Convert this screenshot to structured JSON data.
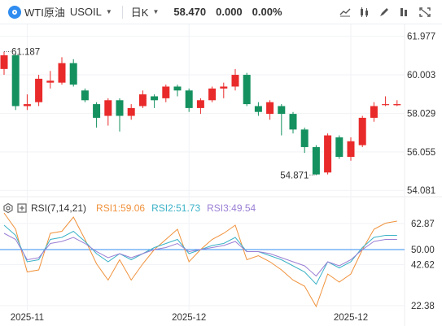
{
  "header": {
    "title": "WTI原油",
    "instrument": "USOIL",
    "period": "日K",
    "price": "58.470",
    "change": "0.000",
    "change_pct": "0.00%"
  },
  "toolbar": [
    "trend-line-icon",
    "indicator-icon",
    "draw-icon",
    "settings-icon",
    "fullscreen-icon"
  ],
  "colors": {
    "up": "#e92a2a",
    "down": "#14915f",
    "rsi1": "#f0923c",
    "rsi2": "#3bb2c7",
    "rsi3": "#9b7fd4",
    "rsi_mid": "#2f8cf0",
    "price_marker": "#e92a2a"
  },
  "rsi_legend": {
    "name": "RSI(7,14,21)",
    "rsi1": "RSI1:59.06",
    "rsi2": "RSI2:51.73",
    "rsi3": "RSI3:49.54"
  },
  "chart_data": {
    "type": "candlestick",
    "title": "",
    "price_axis": {
      "ticks": [
        61.977,
        60.003,
        58.029,
        56.055,
        54.081
      ],
      "range": [
        53.8,
        62.5
      ]
    },
    "max_label": "61.187",
    "min_label": "54.871",
    "last_price": 58.47,
    "date_labels": [
      {
        "label": "2025-11",
        "index": 2
      },
      {
        "label": "2025-12",
        "index": 16
      },
      {
        "label": "2025-12",
        "index": 30
      }
    ],
    "candles": [
      {
        "o": 60.3,
        "c": 61.0,
        "h": 61.187,
        "l": 60.0
      },
      {
        "o": 61.0,
        "c": 58.4,
        "h": 61.1,
        "l": 58.2
      },
      {
        "o": 58.4,
        "c": 58.5,
        "h": 59.0,
        "l": 58.2
      },
      {
        "o": 58.6,
        "c": 59.8,
        "h": 60.0,
        "l": 58.4
      },
      {
        "o": 59.6,
        "c": 59.7,
        "h": 60.2,
        "l": 59.3
      },
      {
        "o": 59.6,
        "c": 60.6,
        "h": 60.9,
        "l": 59.5
      },
      {
        "o": 60.6,
        "c": 59.5,
        "h": 60.8,
        "l": 59.4
      },
      {
        "o": 59.2,
        "c": 58.7,
        "h": 59.3,
        "l": 58.6
      },
      {
        "o": 58.5,
        "c": 57.8,
        "h": 58.6,
        "l": 57.3
      },
      {
        "o": 57.9,
        "c": 58.7,
        "h": 58.8,
        "l": 57.4
      },
      {
        "o": 58.7,
        "c": 57.9,
        "h": 58.8,
        "l": 57.1
      },
      {
        "o": 57.9,
        "c": 58.3,
        "h": 58.5,
        "l": 57.7
      },
      {
        "o": 58.4,
        "c": 59.0,
        "h": 59.2,
        "l": 58.3
      },
      {
        "o": 58.9,
        "c": 58.7,
        "h": 59.0,
        "l": 58.3
      },
      {
        "o": 58.8,
        "c": 59.4,
        "h": 59.5,
        "l": 58.6
      },
      {
        "o": 59.4,
        "c": 59.2,
        "h": 59.5,
        "l": 58.9
      },
      {
        "o": 59.2,
        "c": 58.3,
        "h": 59.3,
        "l": 58.1
      },
      {
        "o": 58.3,
        "c": 58.7,
        "h": 58.8,
        "l": 58.0
      },
      {
        "o": 58.7,
        "c": 59.3,
        "h": 59.4,
        "l": 58.6
      },
      {
        "o": 59.3,
        "c": 59.4,
        "h": 59.6,
        "l": 58.8
      },
      {
        "o": 59.4,
        "c": 60.0,
        "h": 60.3,
        "l": 59.2
      },
      {
        "o": 60.0,
        "c": 58.5,
        "h": 60.1,
        "l": 58.4
      },
      {
        "o": 58.4,
        "c": 58.1,
        "h": 58.6,
        "l": 57.9
      },
      {
        "o": 58.0,
        "c": 58.6,
        "h": 58.7,
        "l": 57.7
      },
      {
        "o": 58.4,
        "c": 58.0,
        "h": 58.5,
        "l": 56.9
      },
      {
        "o": 58.0,
        "c": 57.2,
        "h": 58.1,
        "l": 57.0
      },
      {
        "o": 57.2,
        "c": 56.3,
        "h": 57.3,
        "l": 56.0
      },
      {
        "o": 56.3,
        "c": 54.9,
        "h": 56.4,
        "l": 54.871
      },
      {
        "o": 55.0,
        "c": 56.9,
        "h": 57.0,
        "l": 54.9
      },
      {
        "o": 56.8,
        "c": 55.8,
        "h": 56.9,
        "l": 55.7
      },
      {
        "o": 55.8,
        "c": 56.6,
        "h": 56.8,
        "l": 55.6
      },
      {
        "o": 56.4,
        "c": 57.8,
        "h": 57.9,
        "l": 56.3
      },
      {
        "o": 57.8,
        "c": 58.4,
        "h": 58.6,
        "l": 57.6
      },
      {
        "o": 58.5,
        "c": 58.5,
        "h": 58.9,
        "l": 58.4
      },
      {
        "o": 58.5,
        "c": 58.5,
        "h": 58.7,
        "l": 58.4
      }
    ],
    "rsi_panel": {
      "ticks": [
        62.87,
        50.0,
        42.62,
        22.38
      ],
      "range": [
        20,
        72
      ],
      "mid": 50.0,
      "series": [
        {
          "name": "RSI1",
          "values": [
            68,
            60,
            39,
            40,
            58,
            59,
            66,
            55,
            43,
            35,
            45,
            35,
            43,
            50,
            55,
            60,
            44,
            50,
            55,
            58,
            62,
            45,
            47,
            44,
            40,
            35,
            32,
            22,
            38,
            34,
            38,
            50,
            60,
            63,
            64
          ]
        },
        {
          "name": "RSI2",
          "values": [
            62,
            57,
            44,
            45,
            55,
            56,
            59,
            54,
            48,
            44,
            48,
            45,
            48,
            51,
            53,
            55,
            48,
            50,
            52,
            53,
            56,
            49,
            49,
            47,
            45,
            42,
            39,
            33,
            44,
            41,
            44,
            51,
            56,
            57,
            57
          ]
        },
        {
          "name": "RSI3",
          "values": [
            58,
            55,
            45,
            46,
            53,
            54,
            56,
            53,
            49,
            46,
            48,
            46,
            48,
            50,
            51,
            53,
            49,
            50,
            51,
            52,
            54,
            49,
            49,
            48,
            46,
            44,
            42,
            37,
            44,
            42,
            45,
            50,
            54,
            55,
            55
          ]
        }
      ]
    }
  }
}
